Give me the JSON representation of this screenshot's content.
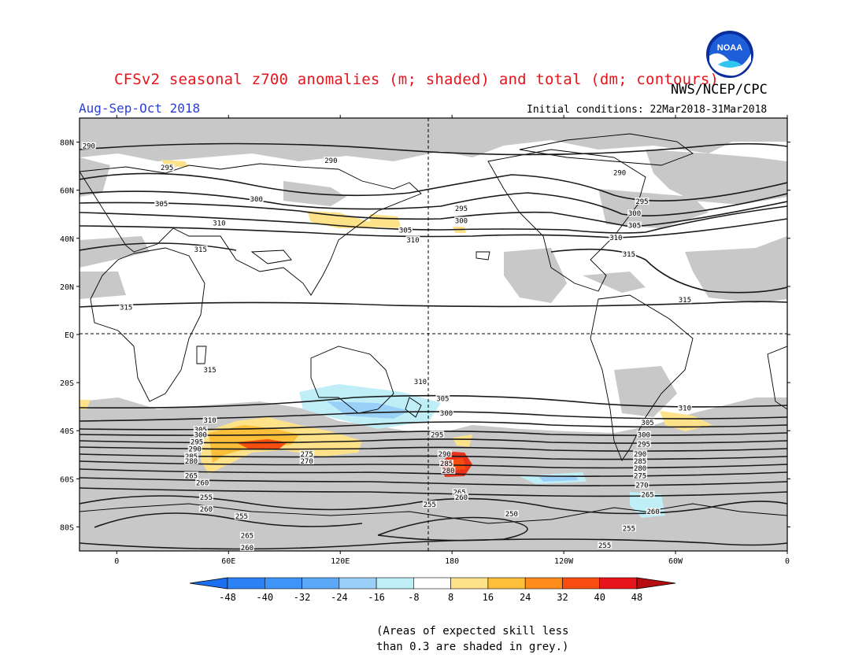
{
  "header": {
    "title": "CFSv2 seasonal z700 anomalies (m; shaded) and total (dm; contours)",
    "season": "Aug-Sep-Oct 2018",
    "agency": "NWS/NCEP/CPC",
    "initial_conditions": "Initial conditions: 22Mar2018-31Mar2018",
    "logo_text": "NOAA"
  },
  "map": {
    "lat_labels": [
      "80N",
      "60N",
      "40N",
      "20N",
      "EQ",
      "20S",
      "40S",
      "60S",
      "80S"
    ],
    "lon_labels": [
      "0",
      "60E",
      "120E",
      "180",
      "120W",
      "60W",
      "0"
    ],
    "contour_labels": [
      {
        "text": "290",
        "lon": -15,
        "lat": 78
      },
      {
        "text": "290",
        "lon": 115,
        "lat": 72
      },
      {
        "text": "290",
        "lon": 270,
        "lat": 67
      },
      {
        "text": "295",
        "lon": 27,
        "lat": 69
      },
      {
        "text": "295",
        "lon": 185,
        "lat": 52
      },
      {
        "text": "295",
        "lon": 282,
        "lat": 55
      },
      {
        "text": "300",
        "lon": 75,
        "lat": 56
      },
      {
        "text": "300",
        "lon": 185,
        "lat": 47
      },
      {
        "text": "300",
        "lon": 278,
        "lat": 50
      },
      {
        "text": "305",
        "lon": 24,
        "lat": 54
      },
      {
        "text": "305",
        "lon": 155,
        "lat": 43
      },
      {
        "text": "305",
        "lon": 278,
        "lat": 45
      },
      {
        "text": "310",
        "lon": 55,
        "lat": 46
      },
      {
        "text": "310",
        "lon": 159,
        "lat": 39
      },
      {
        "text": "310",
        "lon": 268,
        "lat": 40
      },
      {
        "text": "315",
        "lon": 45,
        "lat": 35
      },
      {
        "text": "315",
        "lon": 275,
        "lat": 33
      },
      {
        "text": "315",
        "lon": 305,
        "lat": 14
      },
      {
        "text": "315",
        "lon": 5,
        "lat": 11
      },
      {
        "text": "315",
        "lon": 50,
        "lat": -15
      },
      {
        "text": "310",
        "lon": 163,
        "lat": -20
      },
      {
        "text": "310",
        "lon": 305,
        "lat": -31
      },
      {
        "text": "310",
        "lon": 50,
        "lat": -36
      },
      {
        "text": "305",
        "lon": 45,
        "lat": -40
      },
      {
        "text": "305",
        "lon": 175,
        "lat": -27
      },
      {
        "text": "305",
        "lon": 285,
        "lat": -37
      },
      {
        "text": "300",
        "lon": 45,
        "lat": -42
      },
      {
        "text": "300",
        "lon": 177,
        "lat": -33
      },
      {
        "text": "300",
        "lon": 283,
        "lat": -42
      },
      {
        "text": "295",
        "lon": 43,
        "lat": -45
      },
      {
        "text": "295",
        "lon": 172,
        "lat": -42
      },
      {
        "text": "295",
        "lon": 283,
        "lat": -46
      },
      {
        "text": "290",
        "lon": 42,
        "lat": -48
      },
      {
        "text": "290",
        "lon": 176,
        "lat": -50
      },
      {
        "text": "290",
        "lon": 281,
        "lat": -50
      },
      {
        "text": "285",
        "lon": 40,
        "lat": -51
      },
      {
        "text": "285",
        "lon": 177,
        "lat": -54
      },
      {
        "text": "285",
        "lon": 281,
        "lat": -53
      },
      {
        "text": "280",
        "lon": 40,
        "lat": -53
      },
      {
        "text": "280",
        "lon": 178,
        "lat": -57
      },
      {
        "text": "280",
        "lon": 281,
        "lat": -56
      },
      {
        "text": "275",
        "lon": 102,
        "lat": -50
      },
      {
        "text": "275",
        "lon": 281,
        "lat": -59
      },
      {
        "text": "270",
        "lon": 102,
        "lat": -53
      },
      {
        "text": "270",
        "lon": 282,
        "lat": -63
      },
      {
        "text": "265",
        "lon": 40,
        "lat": -59
      },
      {
        "text": "265",
        "lon": 184,
        "lat": -66
      },
      {
        "text": "265",
        "lon": 285,
        "lat": -67
      },
      {
        "text": "260",
        "lon": 46,
        "lat": -62
      },
      {
        "text": "260",
        "lon": 185,
        "lat": -68
      },
      {
        "text": "260",
        "lon": 288,
        "lat": -74
      },
      {
        "text": "260",
        "lon": 48,
        "lat": -73
      },
      {
        "text": "260",
        "lon": 70,
        "lat": -89
      },
      {
        "text": "255",
        "lon": 48,
        "lat": -68
      },
      {
        "text": "255",
        "lon": 67,
        "lat": -76
      },
      {
        "text": "255",
        "lon": 168,
        "lat": -71
      },
      {
        "text": "255",
        "lon": 275,
        "lat": -81
      },
      {
        "text": "255",
        "lon": 262,
        "lat": -88
      },
      {
        "text": "250",
        "lon": 212,
        "lat": -75
      },
      {
        "text": "265",
        "lon": 70,
        "lat": -84
      }
    ]
  },
  "colorbar": {
    "labels": [
      "-48",
      "-40",
      "-32",
      "-24",
      "-16",
      "-8",
      "8",
      "16",
      "24",
      "32",
      "40",
      "48"
    ],
    "colors": [
      "#1d6ff2",
      "#2c82f5",
      "#3e95f7",
      "#5aa8f7",
      "#9ad0f7",
      "#bfeef7",
      "#ffffff",
      "#fde28a",
      "#fdbf3a",
      "#fd8c1a",
      "#f74e10",
      "#e8141b",
      "#b80d10"
    ]
  },
  "note": {
    "line1": "(Areas of expected skill less",
    "line2": "than 0.3 are shaded in grey.)"
  }
}
